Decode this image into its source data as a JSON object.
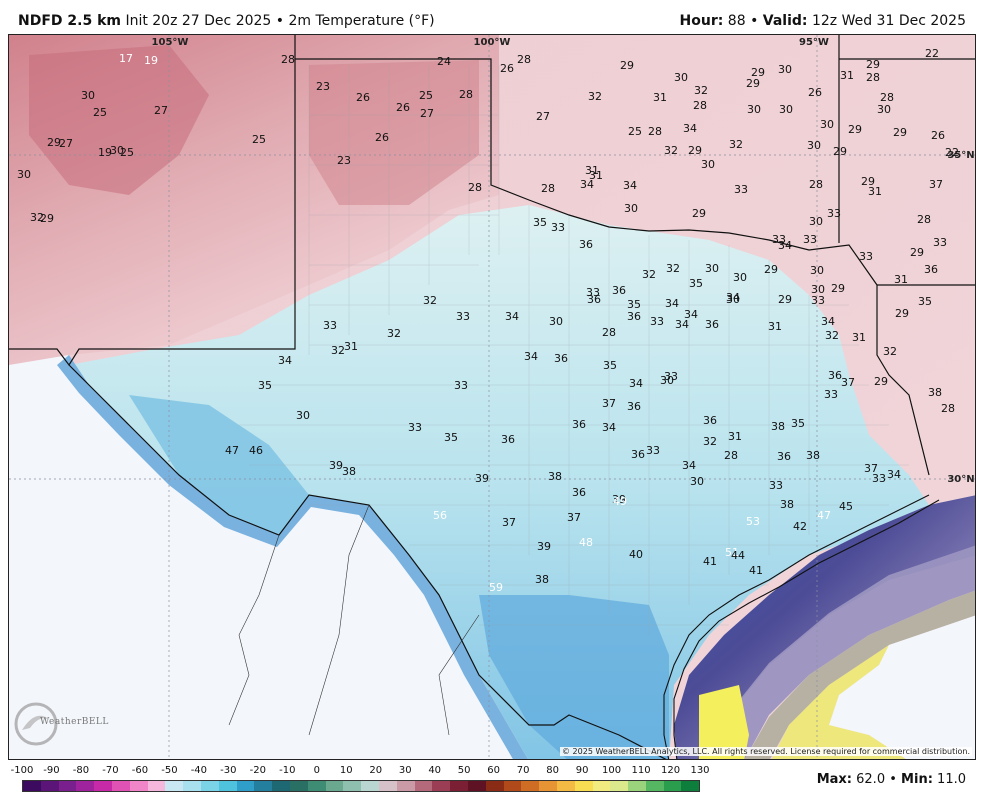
{
  "header": {
    "model": "NDFD 2.5 km",
    "init": "Init 20z 27 Dec 2025",
    "separator": "•",
    "field": "2m Temperature (°F)",
    "hour_label": "Hour:",
    "hour_value": "88",
    "valid_label": "Valid:",
    "valid_value": "12z Wed 31 Dec 2025"
  },
  "map": {
    "longitude_labels": [
      "105°W",
      "100°W",
      "95°W"
    ],
    "latitude_labels": [
      "35°N",
      "30°N"
    ],
    "colors": {
      "warm_pink": "#d98e96",
      "light_pink": "#f1d3d7",
      "pale_cyan": "#d8f0f2",
      "light_blue": "#8fd0e8",
      "mid_blue": "#4fa6dd",
      "deep_blue": "#3d6fc4",
      "indigo": "#4a4c9a",
      "lavender": "#8a80b8",
      "grey": "#b0aca6",
      "yellow": "#f2ec80",
      "bright_yellow": "#f5f160",
      "ocean": "#f3f6fb"
    },
    "temperature_labels": [
      "17",
      "19",
      "28",
      "24",
      "26",
      "28",
      "29",
      "30",
      "29",
      "30",
      "29",
      "22",
      "23",
      "26",
      "26",
      "25",
      "28",
      "30",
      "32",
      "31",
      "32",
      "29",
      "28",
      "31",
      "27",
      "27",
      "28",
      "25",
      "26",
      "25",
      "27",
      "34",
      "30",
      "30",
      "30",
      "29",
      "30",
      "29",
      "28",
      "25",
      "27",
      "19",
      "25",
      "29",
      "23",
      "26",
      "28",
      "32",
      "29",
      "32",
      "30",
      "35°N",
      "22",
      "29",
      "30",
      "32",
      "30",
      "29",
      "29",
      "28",
      "26",
      "28",
      "31",
      "28",
      "31",
      "30",
      "30",
      "31",
      "34",
      "33",
      "35",
      "33",
      "34",
      "29",
      "28",
      "30",
      "33",
      "36",
      "33",
      "37",
      "35",
      "34",
      "33",
      "36",
      "32",
      "32",
      "32",
      "33",
      "31",
      "30",
      "30",
      "29",
      "30",
      "29",
      "29",
      "33",
      "36",
      "36",
      "35",
      "34",
      "35",
      "34",
      "33",
      "34",
      "33",
      "32",
      "31",
      "32",
      "33",
      "34",
      "30",
      "28",
      "36",
      "33",
      "34",
      "34",
      "36",
      "30",
      "31",
      "29",
      "30",
      "29",
      "28",
      "29",
      "38",
      "33",
      "32",
      "32",
      "31",
      "34",
      "35",
      "33",
      "34",
      "36",
      "35",
      "34",
      "33",
      "30",
      "37",
      "36",
      "36",
      "38",
      "35",
      "36",
      "33",
      "37",
      "30",
      "33",
      "35",
      "36",
      "36",
      "34",
      "36",
      "33",
      "34",
      "32",
      "31",
      "30",
      "28",
      "38",
      "36",
      "33",
      "38",
      "37",
      "33",
      "34",
      "47",
      "46",
      "39",
      "38",
      "39",
      "38",
      "36",
      "39",
      "37",
      "49",
      "53",
      "51",
      "41",
      "40",
      "48",
      "56",
      "37",
      "39",
      "38",
      "59",
      "41",
      "44",
      "42",
      "47",
      "45"
    ],
    "copyright": "© 2025 WeatherBELL Analytics, LLC. All rights reserved. License required for commercial distribution.",
    "logo_text": "WeatherBELL"
  },
  "scale": {
    "ticks": [
      "-100",
      "-90",
      "-80",
      "-70",
      "-60",
      "-50",
      "-40",
      "-30",
      "-20",
      "-10",
      "0",
      "10",
      "20",
      "30",
      "40",
      "50",
      "60",
      "70",
      "80",
      "90",
      "100",
      "110",
      "120",
      "130"
    ],
    "colors": [
      "#3c0a5e",
      "#5b1478",
      "#7a1f8e",
      "#a0239e",
      "#c62aa6",
      "#e052b4",
      "#f085c8",
      "#f5b7dc",
      "#c9e6f3",
      "#a8e0ef",
      "#7ad3e6",
      "#4fc2de",
      "#2f9fca",
      "#247f9e",
      "#1d6873",
      "#2a6f63",
      "#3e8c73",
      "#6aa88f",
      "#8fbfae",
      "#b9d6d0",
      "#d6c1c9",
      "#ca9aa6",
      "#b56a7c",
      "#9b3d55",
      "#7a1f34",
      "#5e1224",
      "#8a2b15",
      "#b14a1a",
      "#d06d24",
      "#e79534",
      "#f3bb43",
      "#f8dc52",
      "#f2ec80",
      "#d9e98c",
      "#9ad37b",
      "#56b763",
      "#2b9e4e",
      "#0d7e3b"
    ]
  },
  "stats": {
    "max_label": "Max:",
    "max_value": "62.0",
    "bullet": "•",
    "min_label": "Min:",
    "min_value": "11.0"
  }
}
